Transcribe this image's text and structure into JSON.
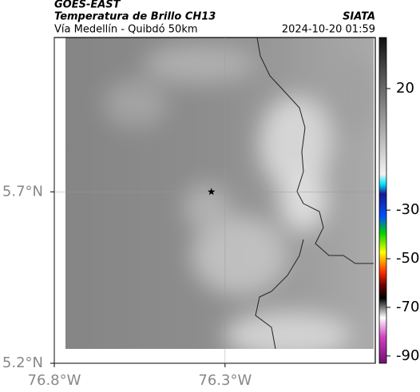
{
  "header": {
    "satellite": "GOES-EAST",
    "title": "Temperatura de Brillo CH13",
    "source": "SIATA",
    "subtitle": "Vía Medellín - Quibdó 50km",
    "datetime": "2024-10-20 01:59"
  },
  "map": {
    "xlim": [
      -76.8,
      -75.86
    ],
    "ylim": [
      5.2,
      6.15
    ],
    "xticks": [
      {
        "value": -76.8,
        "label": "76.8°W"
      },
      {
        "value": -76.3,
        "label": "76.3°W"
      }
    ],
    "yticks": [
      {
        "value": 5.2,
        "label": "5.2°N"
      },
      {
        "value": 5.7,
        "label": "5.7°N"
      }
    ],
    "grid": true,
    "marker": {
      "lon": -76.34,
      "lat": 5.7
    }
  },
  "colorbar": {
    "clim": [
      -93,
      41
    ],
    "ticks": [
      20,
      -30,
      -50,
      -70,
      -90
    ]
  }
}
